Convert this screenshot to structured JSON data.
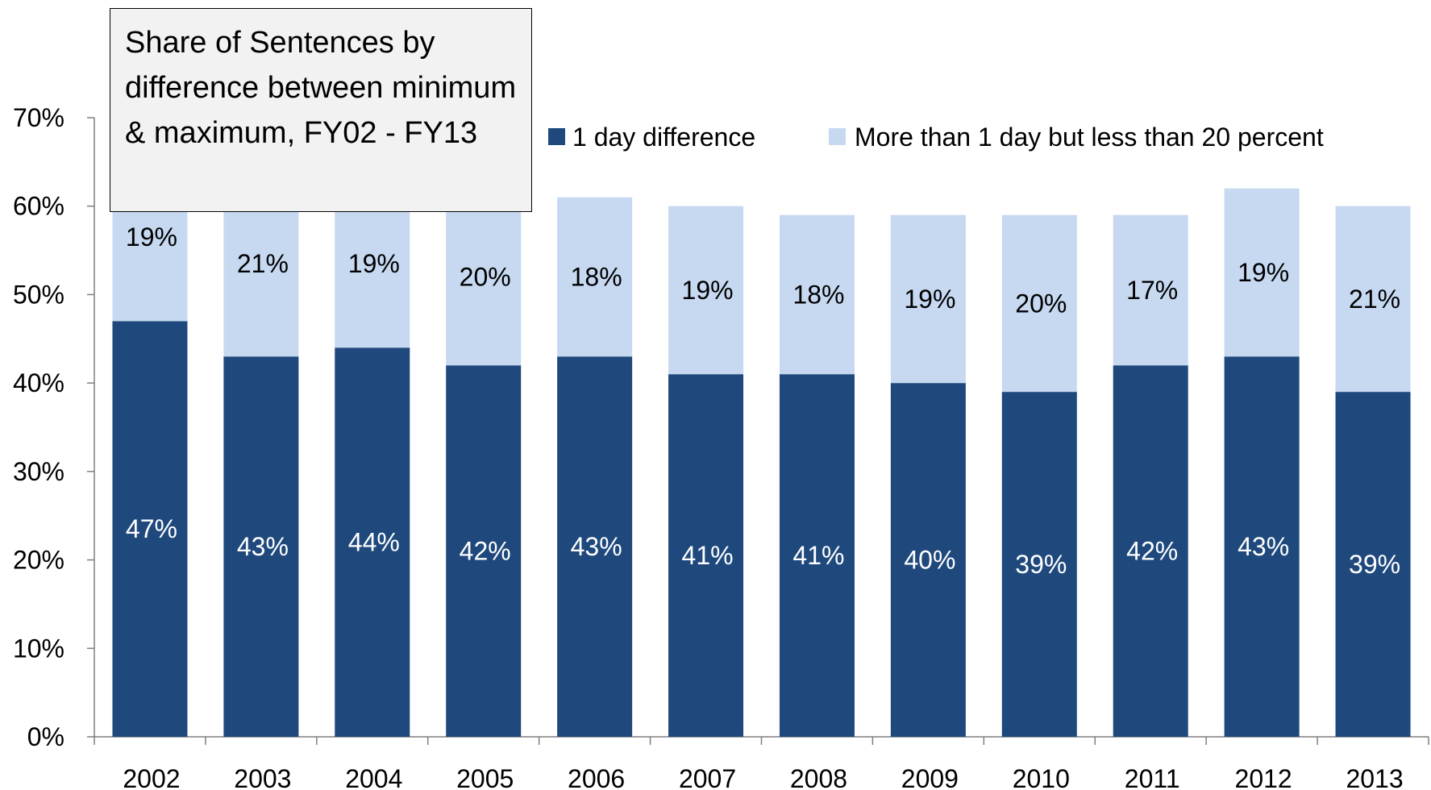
{
  "chart_data": {
    "type": "bar",
    "stacked": true,
    "title": "Share of Sentences by difference between minimum & maximum, FY02 - FY13",
    "categories": [
      "2002",
      "2003",
      "2004",
      "2005",
      "2006",
      "2007",
      "2008",
      "2009",
      "2010",
      "2011",
      "2012",
      "2013"
    ],
    "series": [
      {
        "name": "1 day difference",
        "color": "#1f497d",
        "values": [
          47,
          43,
          44,
          42,
          43,
          41,
          41,
          40,
          39,
          42,
          43,
          39
        ],
        "labels": [
          "47%",
          "43%",
          "44%",
          "42%",
          "43%",
          "41%",
          "41%",
          "40%",
          "39%",
          "42%",
          "43%",
          "39%"
        ]
      },
      {
        "name": "More than 1 day but less than 20 percent",
        "color": "#c6d9f1",
        "values": [
          19,
          21,
          19,
          20,
          18,
          19,
          18,
          19,
          20,
          17,
          19,
          21
        ],
        "labels": [
          "19%",
          "21%",
          "19%",
          "20%",
          "18%",
          "19%",
          "18%",
          "19%",
          "20%",
          "17%",
          "19%",
          "21%"
        ]
      }
    ],
    "ylim": [
      0,
      70
    ],
    "yticks": [
      "0%",
      "10%",
      "20%",
      "30%",
      "40%",
      "50%",
      "60%",
      "70%"
    ],
    "xlabel": "",
    "ylabel": "",
    "grid": false,
    "legend_position": "top-right"
  }
}
